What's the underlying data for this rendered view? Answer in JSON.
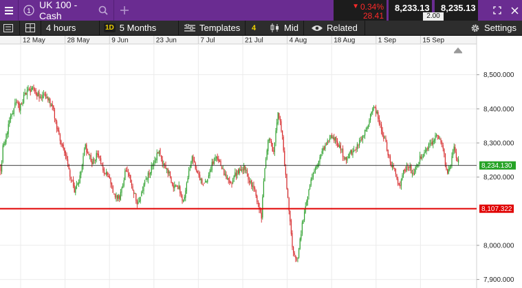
{
  "market": {
    "info_icon": "info-icon",
    "name": "UK 100 - Cash",
    "search_icon": "search-icon",
    "add_icon": "plus-icon",
    "change_percent": "0.34%",
    "change_points": "28.41",
    "change_arrow": "▼",
    "sell_price": "8,233.13",
    "buy_price": "8,235.13",
    "spread": "2.00"
  },
  "toolbar": {
    "menu_icon": "hamburger-icon",
    "layout_icon": "grid-layout-icon",
    "interval": "4 hours",
    "range_badge": "1D",
    "range": "5 Months",
    "templates_icon": "templates-icon",
    "templates": "Templates",
    "indicator_count": "4",
    "candles_icon": "candlestick-icon",
    "price_type": "Mid",
    "related_icon": "eye-icon",
    "related": "Related",
    "settings_icon": "gear-icon",
    "settings": "Settings"
  },
  "window": {
    "expand_icon": "expand-icon",
    "close_icon": "close-icon"
  },
  "colors": {
    "header_bg": "#6a2c91",
    "toolbar_bg": "#2d2d2d",
    "up_candle": "#2ca02c",
    "down_candle": "#d62728",
    "last_price_badge": "#26a326",
    "level_line": "#e00000"
  },
  "chart_data": {
    "type": "candlestick",
    "x_tick_labels": [
      "12 May",
      "28 May",
      "9 Jun",
      "23 Jun",
      "7 Jul",
      "21 Jul",
      "4 Aug",
      "18 Aug",
      "1 Sep",
      "15 Sep"
    ],
    "y_tick_labels": [
      "8,500.000",
      "8,400.000",
      "8,300.000",
      "8,200.000",
      "8,000.000",
      "7,900.000"
    ],
    "y_ticks": [
      8500,
      8400,
      8300,
      8200,
      8000,
      7900
    ],
    "ylim": [
      7875,
      8590
    ],
    "grid": true,
    "last_price": 8234.13,
    "last_price_label": "8,234.130",
    "level_line": 8107.322,
    "level_line_label": "8,107.322",
    "anchors": [
      [
        0,
        8240
      ],
      [
        2,
        8210
      ],
      [
        4,
        8290
      ],
      [
        10,
        8330
      ],
      [
        22,
        8420
      ],
      [
        28,
        8400
      ],
      [
        36,
        8440
      ],
      [
        48,
        8465
      ],
      [
        58,
        8430
      ],
      [
        68,
        8440
      ],
      [
        78,
        8390
      ],
      [
        88,
        8300
      ],
      [
        98,
        8240
      ],
      [
        108,
        8160
      ],
      [
        116,
        8200
      ],
      [
        124,
        8290
      ],
      [
        134,
        8240
      ],
      [
        142,
        8270
      ],
      [
        150,
        8220
      ],
      [
        158,
        8200
      ],
      [
        166,
        8150
      ],
      [
        174,
        8140
      ],
      [
        184,
        8230
      ],
      [
        192,
        8170
      ],
      [
        200,
        8120
      ],
      [
        208,
        8170
      ],
      [
        216,
        8210
      ],
      [
        224,
        8240
      ],
      [
        230,
        8280
      ],
      [
        236,
        8240
      ],
      [
        244,
        8220
      ],
      [
        252,
        8170
      ],
      [
        260,
        8170
      ],
      [
        266,
        8120
      ],
      [
        272,
        8190
      ],
      [
        280,
        8260
      ],
      [
        286,
        8220
      ],
      [
        294,
        8180
      ],
      [
        302,
        8190
      ],
      [
        308,
        8240
      ],
      [
        316,
        8260
      ],
      [
        322,
        8230
      ],
      [
        328,
        8200
      ],
      [
        336,
        8180
      ],
      [
        342,
        8210
      ],
      [
        348,
        8220
      ],
      [
        356,
        8230
      ],
      [
        364,
        8180
      ],
      [
        370,
        8160
      ],
      [
        376,
        8120
      ],
      [
        380,
        8080
      ],
      [
        384,
        8210
      ],
      [
        390,
        8320
      ],
      [
        398,
        8270
      ],
      [
        404,
        8390
      ],
      [
        410,
        8330
      ],
      [
        414,
        8230
      ],
      [
        420,
        8110
      ],
      [
        426,
        7980
      ],
      [
        432,
        7950
      ],
      [
        438,
        8040
      ],
      [
        444,
        8120
      ],
      [
        452,
        8190
      ],
      [
        460,
        8230
      ],
      [
        468,
        8270
      ],
      [
        476,
        8310
      ],
      [
        484,
        8320
      ],
      [
        490,
        8300
      ],
      [
        496,
        8280
      ],
      [
        502,
        8250
      ],
      [
        510,
        8270
      ],
      [
        520,
        8290
      ],
      [
        528,
        8320
      ],
      [
        536,
        8360
      ],
      [
        542,
        8410
      ],
      [
        548,
        8390
      ],
      [
        556,
        8330
      ],
      [
        562,
        8290
      ],
      [
        568,
        8240
      ],
      [
        574,
        8220
      ],
      [
        580,
        8170
      ],
      [
        586,
        8210
      ],
      [
        594,
        8240
      ],
      [
        600,
        8200
      ],
      [
        606,
        8240
      ],
      [
        612,
        8260
      ],
      [
        620,
        8280
      ],
      [
        628,
        8300
      ],
      [
        634,
        8330
      ],
      [
        640,
        8310
      ],
      [
        646,
        8260
      ],
      [
        650,
        8200
      ],
      [
        656,
        8240
      ],
      [
        660,
        8290
      ],
      [
        664,
        8250
      ],
      [
        668,
        8240
      ]
    ]
  }
}
